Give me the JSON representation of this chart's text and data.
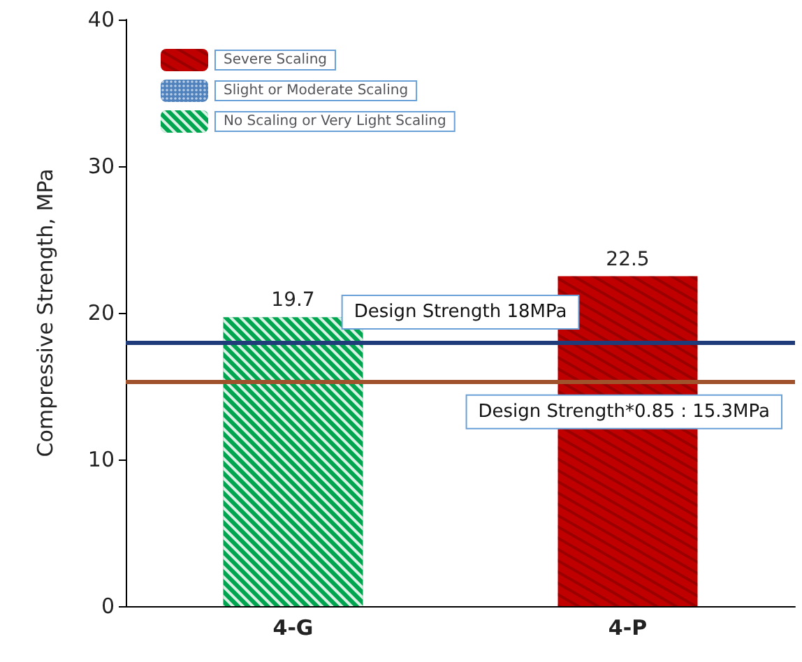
{
  "chart_data": {
    "type": "bar",
    "ylabel": "Compressive Strength, MPa",
    "categories": [
      "4-G",
      "4-P"
    ],
    "stacked": true,
    "series": [
      {
        "name": "Severe Scaling",
        "color": "#c00000",
        "values": [
          null,
          22.5
        ]
      },
      {
        "name": "Slight or Moderate Scaling",
        "color": "#4f81bd",
        "values": [
          null,
          null
        ]
      },
      {
        "name": "No Scaling or Very Light Scaling",
        "color": "#00a550",
        "values": [
          19.7,
          null
        ]
      }
    ],
    "ylim": [
      0,
      40
    ],
    "yticks": [
      0,
      10,
      20,
      30,
      40
    ],
    "grid": false,
    "legend": "top left",
    "data_labels": true,
    "ref_lines": [
      {
        "axis": "y",
        "value": 18,
        "label": "Design Strength 18MPa",
        "color": "#1f3b7a"
      },
      {
        "axis": "y",
        "value": 15.3,
        "label": "Design Strength*0.85 : 15.3MPa",
        "color": "#a0522d"
      }
    ]
  }
}
